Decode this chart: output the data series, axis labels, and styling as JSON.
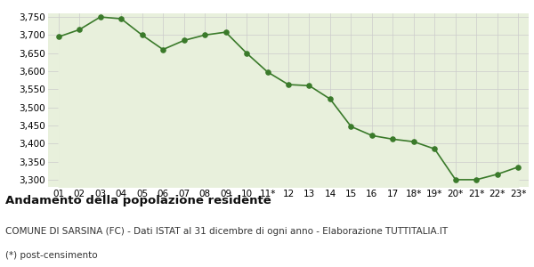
{
  "x_labels": [
    "01",
    "02",
    "03",
    "04",
    "05",
    "06",
    "07",
    "08",
    "09",
    "10",
    "11*",
    "12",
    "13",
    "14",
    "15",
    "16",
    "17",
    "18*",
    "19*",
    "20*",
    "21*",
    "22*",
    "23*"
  ],
  "y_values": [
    3695,
    3715,
    3750,
    3745,
    3700,
    3660,
    3685,
    3700,
    3708,
    3650,
    3598,
    3563,
    3560,
    3523,
    3447,
    3422,
    3412,
    3405,
    3385,
    3300,
    3300,
    3315,
    3335
  ],
  "line_color": "#3a7a2a",
  "fill_color": "#e8f0dc",
  "marker_color": "#3a7a2a",
  "background_color": "#ffffff",
  "grid_color": "#cccccc",
  "ylim": [
    3280,
    3760
  ],
  "yticks": [
    3300,
    3350,
    3400,
    3450,
    3500,
    3550,
    3600,
    3650,
    3700,
    3750
  ],
  "title": "Andamento della popolazione residente",
  "subtitle": "COMUNE DI SARSINA (FC) - Dati ISTAT al 31 dicembre di ogni anno - Elaborazione TUTTITALIA.IT",
  "footnote": "(*) post-censimento",
  "title_fontsize": 9.5,
  "subtitle_fontsize": 7.5,
  "footnote_fontsize": 7.5,
  "tick_fontsize": 7.5
}
